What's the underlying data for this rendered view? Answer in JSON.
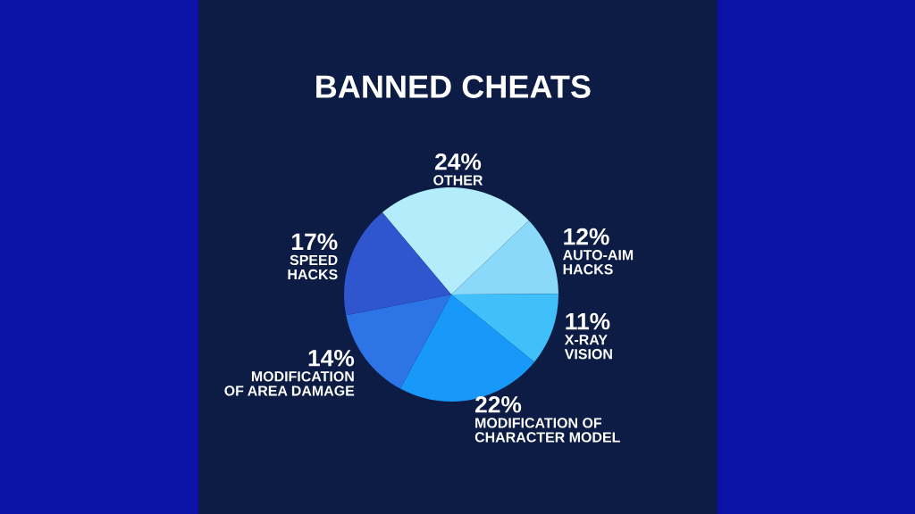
{
  "chart_data": {
    "type": "pie",
    "title": "BANNED CHEATS",
    "categories": [
      "OTHER",
      "AUTO-AIM\nHACKS",
      "X-RAY\nVISION",
      "MODIFICATION OF\nCHARACTER MODEL",
      "MODIFICATION\nOF AREA DAMAGE",
      "SPEED\nHACKS"
    ],
    "values": [
      24,
      12,
      11,
      22,
      14,
      17
    ],
    "colors": [
      "#b3ecfb",
      "#8ad8fa",
      "#40c0fb",
      "#1898f8",
      "#2d74e6",
      "#2f55cf"
    ],
    "value_labels": [
      "24%",
      "12%",
      "11%",
      "22%",
      "14%",
      "17%"
    ]
  }
}
